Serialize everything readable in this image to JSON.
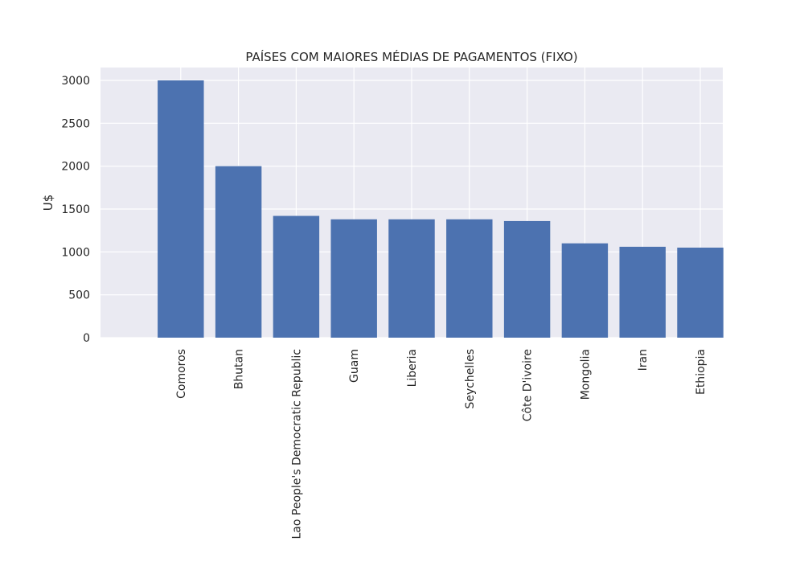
{
  "chart_data": {
    "type": "bar",
    "title": "PAÍSES COM MAIORES MÉDIAS DE PAGAMENTOS (FIXO)",
    "xlabel": "",
    "ylabel": "U$",
    "categories": [
      "Comoros",
      "Bhutan",
      "Lao People's Democratic Republic",
      "Guam",
      "Liberia",
      "Seychelles",
      "Côte D'ivoire",
      "Mongolia",
      "Iran",
      "Ethiopia"
    ],
    "values": [
      3000,
      2000,
      1420,
      1380,
      1380,
      1380,
      1360,
      1100,
      1060,
      1050
    ],
    "ylim": [
      0,
      3150
    ],
    "yticks": [
      0,
      500,
      1000,
      1500,
      2000,
      2500,
      3000
    ],
    "grid": true,
    "legend": "none",
    "colors": {
      "bar": "#4c72b0",
      "plot_background": "#eaeaf2",
      "grid": "#ffffff",
      "text": "#262626"
    }
  }
}
